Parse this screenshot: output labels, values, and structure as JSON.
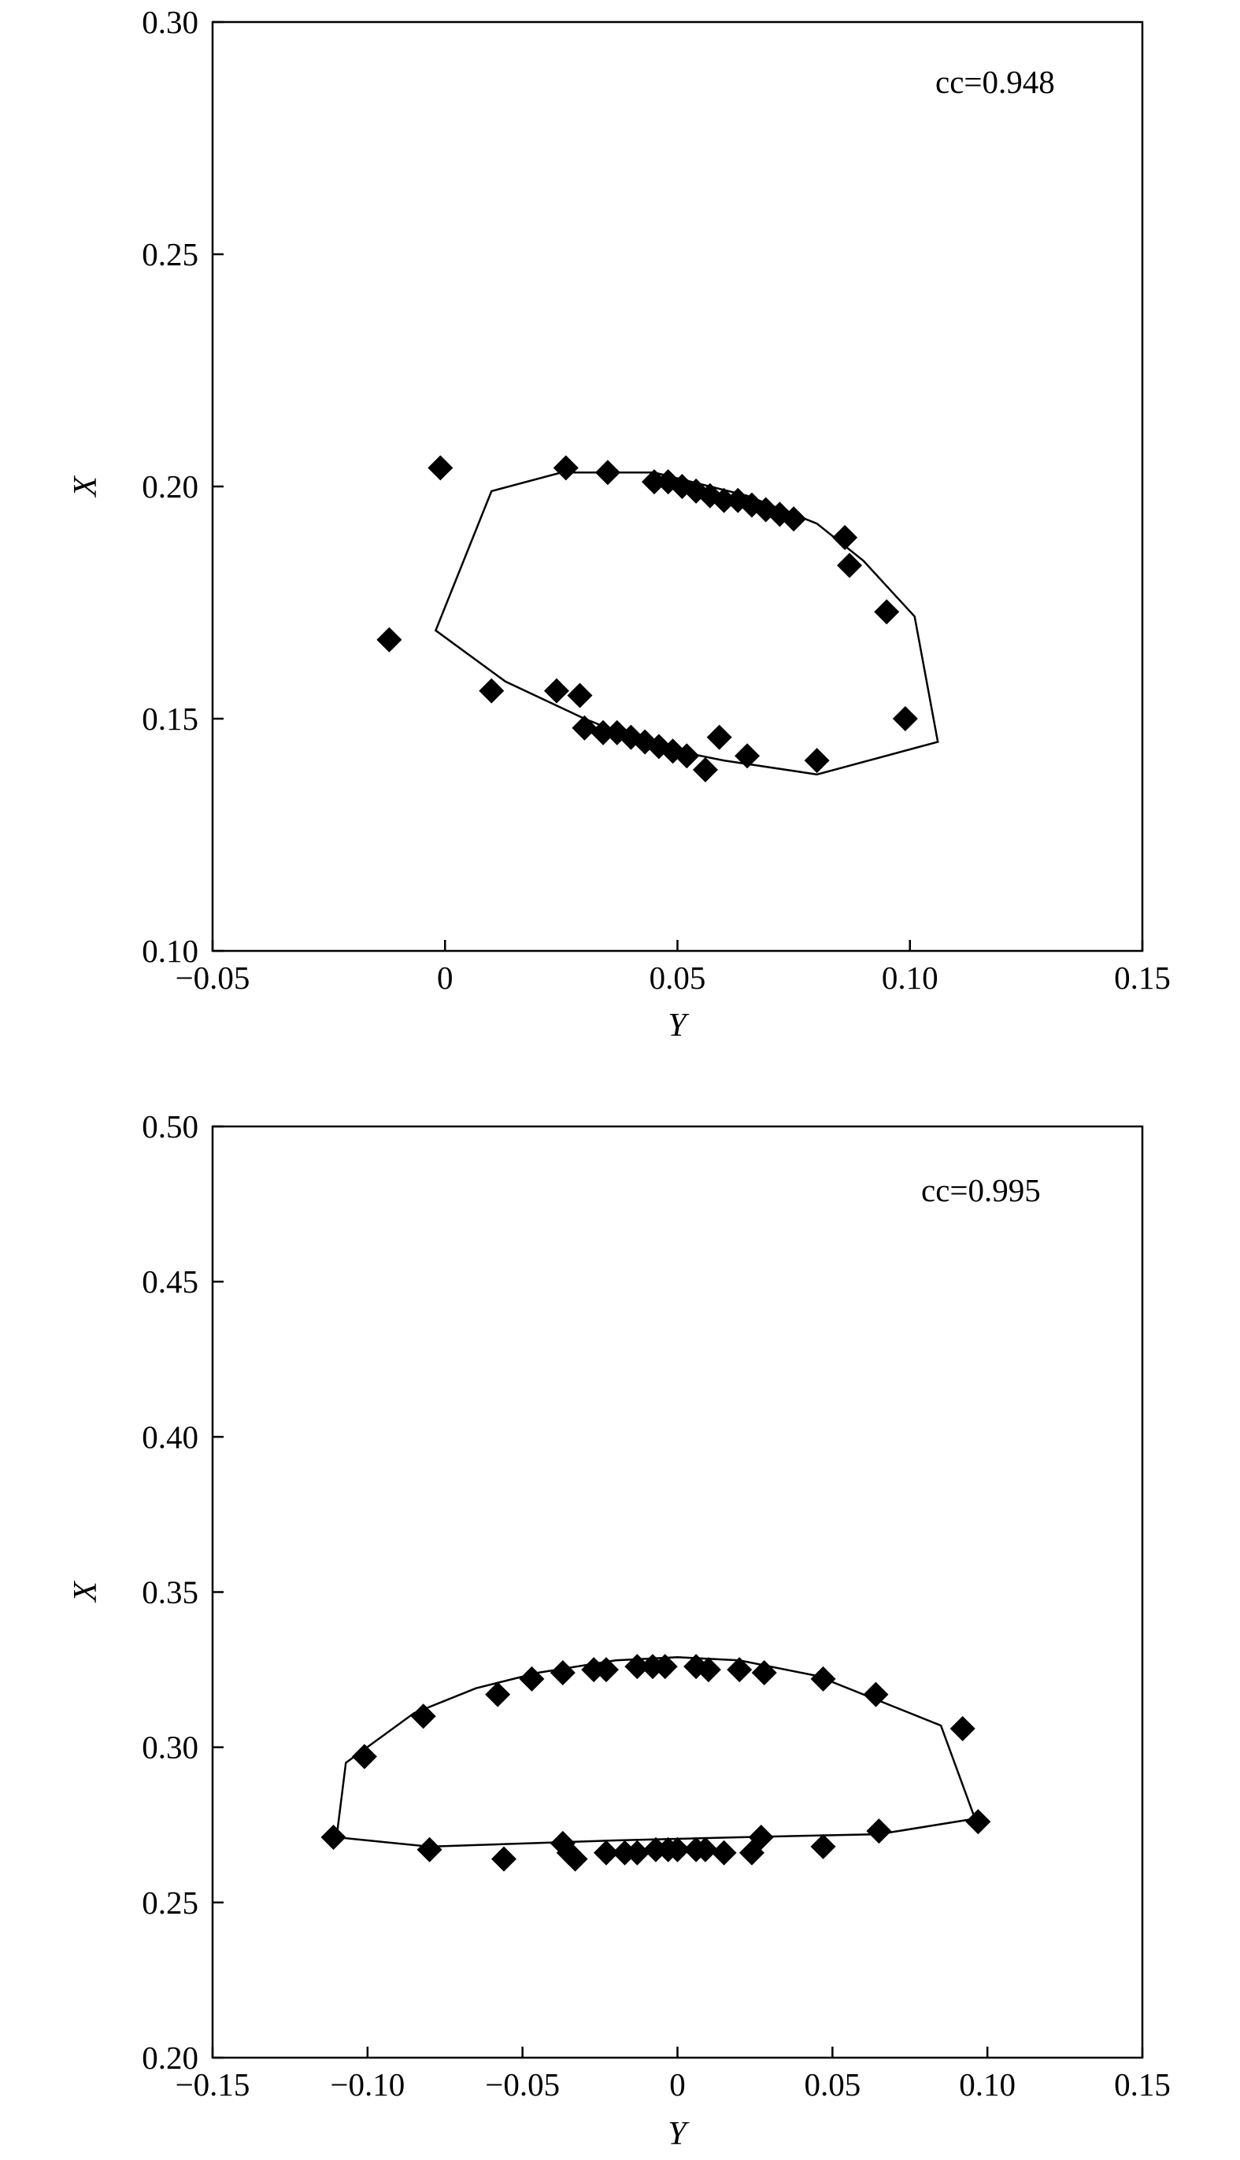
{
  "chart_data": [
    {
      "type": "scatter",
      "xlabel": "Y",
      "ylabel": "X",
      "xlim": [
        -0.05,
        0.15
      ],
      "ylim": [
        0.1,
        0.3
      ],
      "x_ticks": [
        -0.05,
        0,
        0.05,
        0.1,
        0.15
      ],
      "x_tick_labels": [
        "−0.05",
        "0",
        "0.05",
        "0.10",
        "0.15"
      ],
      "y_ticks": [
        0.1,
        0.15,
        0.2,
        0.25,
        0.3
      ],
      "y_tick_labels": [
        "0.10",
        "0.15",
        "0.20",
        "0.25",
        "0.30"
      ],
      "annotation": "cc=0.948",
      "grid": false,
      "series": [
        {
          "marker": "diamond",
          "color": "#000000",
          "points": [
            [
              -0.001,
              0.204
            ],
            [
              0.026,
              0.204
            ],
            [
              0.035,
              0.203
            ],
            [
              0.045,
              0.201
            ],
            [
              0.048,
              0.201
            ],
            [
              0.051,
              0.2
            ],
            [
              0.054,
              0.199
            ],
            [
              0.057,
              0.198
            ],
            [
              0.06,
              0.197
            ],
            [
              0.063,
              0.197
            ],
            [
              0.066,
              0.196
            ],
            [
              0.069,
              0.195
            ],
            [
              0.072,
              0.194
            ],
            [
              0.075,
              0.193
            ],
            [
              0.086,
              0.189
            ],
            [
              0.087,
              0.183
            ],
            [
              0.095,
              0.173
            ],
            [
              0.099,
              0.15
            ],
            [
              -0.012,
              0.167
            ],
            [
              0.01,
              0.156
            ],
            [
              0.024,
              0.156
            ],
            [
              0.029,
              0.155
            ],
            [
              0.03,
              0.148
            ],
            [
              0.034,
              0.147
            ],
            [
              0.037,
              0.147
            ],
            [
              0.04,
              0.146
            ],
            [
              0.043,
              0.145
            ],
            [
              0.046,
              0.144
            ],
            [
              0.049,
              0.143
            ],
            [
              0.052,
              0.142
            ],
            [
              0.056,
              0.139
            ],
            [
              0.059,
              0.146
            ],
            [
              0.065,
              0.142
            ],
            [
              0.08,
              0.141
            ]
          ]
        },
        {
          "line": true,
          "color": "#000000",
          "closed": true,
          "points": [
            [
              0.01,
              0.199
            ],
            [
              0.025,
              0.203
            ],
            [
              0.045,
              0.203
            ],
            [
              0.065,
              0.198
            ],
            [
              0.08,
              0.192
            ],
            [
              0.09,
              0.184
            ],
            [
              0.101,
              0.172
            ],
            [
              0.106,
              0.145
            ],
            [
              0.08,
              0.138
            ],
            [
              0.06,
              0.141
            ],
            [
              0.045,
              0.144
            ],
            [
              0.03,
              0.15
            ],
            [
              0.013,
              0.158
            ],
            [
              -0.002,
              0.169
            ]
          ]
        }
      ]
    },
    {
      "type": "scatter",
      "xlabel": "Y",
      "ylabel": "X",
      "xlim": [
        -0.15,
        0.15
      ],
      "ylim": [
        0.2,
        0.5
      ],
      "x_ticks": [
        -0.15,
        -0.1,
        -0.05,
        0,
        0.05,
        0.1,
        0.15
      ],
      "x_tick_labels": [
        "−0.15",
        "−0.10",
        "−0.05",
        "0",
        "0.05",
        "0.10",
        "0.15"
      ],
      "y_ticks": [
        0.2,
        0.25,
        0.3,
        0.35,
        0.4,
        0.45,
        0.5
      ],
      "y_tick_labels": [
        "0.20",
        "0.25",
        "0.30",
        "0.35",
        "0.40",
        "0.45",
        "0.50"
      ],
      "annotation": "cc=0.995",
      "grid": false,
      "series": [
        {
          "marker": "diamond",
          "color": "#000000",
          "points": [
            [
              -0.111,
              0.271
            ],
            [
              -0.101,
              0.297
            ],
            [
              -0.082,
              0.31
            ],
            [
              -0.08,
              0.267
            ],
            [
              -0.058,
              0.317
            ],
            [
              -0.056,
              0.264
            ],
            [
              -0.047,
              0.322
            ],
            [
              -0.037,
              0.324
            ],
            [
              -0.037,
              0.269
            ],
            [
              -0.035,
              0.266
            ],
            [
              -0.033,
              0.264
            ],
            [
              -0.027,
              0.325
            ],
            [
              -0.023,
              0.325
            ],
            [
              -0.023,
              0.266
            ],
            [
              -0.017,
              0.266
            ],
            [
              -0.013,
              0.326
            ],
            [
              -0.013,
              0.266
            ],
            [
              -0.008,
              0.326
            ],
            [
              -0.007,
              0.267
            ],
            [
              -0.004,
              0.326
            ],
            [
              -0.003,
              0.267
            ],
            [
              0.0,
              0.267
            ],
            [
              0.006,
              0.326
            ],
            [
              0.006,
              0.267
            ],
            [
              0.009,
              0.267
            ],
            [
              0.01,
              0.325
            ],
            [
              0.015,
              0.266
            ],
            [
              0.02,
              0.325
            ],
            [
              0.024,
              0.266
            ],
            [
              0.027,
              0.271
            ],
            [
              0.028,
              0.324
            ],
            [
              0.047,
              0.322
            ],
            [
              0.047,
              0.268
            ],
            [
              0.064,
              0.317
            ],
            [
              0.065,
              0.273
            ],
            [
              0.092,
              0.306
            ],
            [
              0.097,
              0.276
            ]
          ]
        },
        {
          "line": true,
          "color": "#000000",
          "closed": true,
          "points": [
            [
              -0.107,
              0.295
            ],
            [
              -0.085,
              0.311
            ],
            [
              -0.065,
              0.319
            ],
            [
              -0.045,
              0.324
            ],
            [
              -0.02,
              0.328
            ],
            [
              0.0,
              0.329
            ],
            [
              0.02,
              0.328
            ],
            [
              0.045,
              0.323
            ],
            [
              0.065,
              0.315
            ],
            [
              0.085,
              0.307
            ],
            [
              0.096,
              0.277
            ],
            [
              0.065,
              0.272
            ],
            [
              0.02,
              0.271
            ],
            [
              -0.02,
              0.27
            ],
            [
              -0.08,
              0.268
            ],
            [
              -0.11,
              0.271
            ]
          ]
        }
      ]
    }
  ]
}
